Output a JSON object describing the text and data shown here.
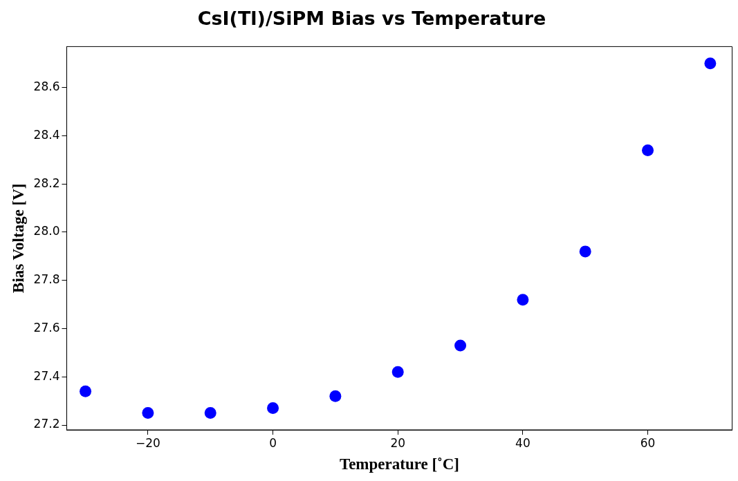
{
  "chart_data": {
    "type": "scatter",
    "title": "CsI(Tl)/SiPM Bias vs Temperature",
    "xlabel": "Temperature [˚C]",
    "ylabel": "Bias Voltage [V]",
    "x": [
      -30,
      -20,
      -10,
      0,
      10,
      20,
      30,
      40,
      50,
      60,
      70
    ],
    "series": [
      {
        "color": "#0000ff",
        "values": [
          27.34,
          27.25,
          27.25,
          27.27,
          27.32,
          27.42,
          27.53,
          27.72,
          27.92,
          28.34,
          28.7
        ]
      }
    ],
    "xlim": [
      -33,
      73.5
    ],
    "ylim": [
      27.18,
      28.77
    ],
    "xticks": [
      {
        "value": -20,
        "label": "−20"
      },
      0,
      20,
      40,
      60
    ],
    "yticks": [
      {
        "value": 27.2,
        "label": "27.2"
      },
      {
        "value": 27.4,
        "label": "27.4"
      },
      {
        "value": 27.6,
        "label": "27.6"
      },
      {
        "value": 27.8,
        "label": "27.8"
      },
      {
        "value": 28.0,
        "label": "28.0"
      },
      {
        "value": 28.2,
        "label": "28.2"
      },
      {
        "value": 28.4,
        "label": "28.4"
      },
      {
        "value": 28.6,
        "label": "28.6"
      }
    ],
    "grid": false,
    "legend": false,
    "marker": "circle"
  }
}
